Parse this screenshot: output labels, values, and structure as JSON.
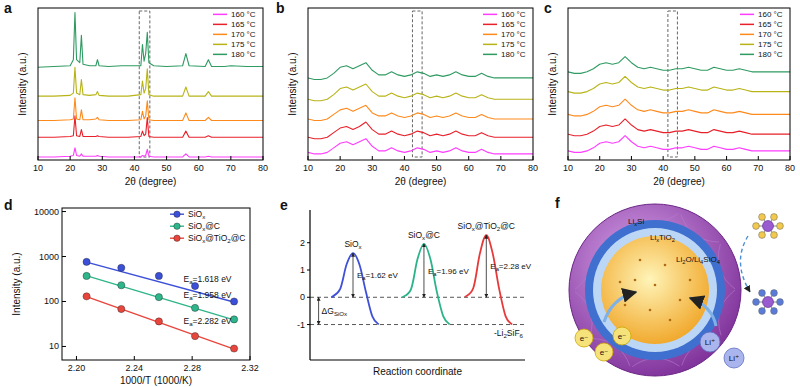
{
  "chart_data": [
    {
      "type": "line",
      "title": "a",
      "x_label": "2θ (degree)",
      "y_label": "Intensity (a.u.)",
      "x": [
        10,
        15,
        20,
        21,
        21.5,
        22,
        23,
        23.5,
        24,
        26,
        28,
        28.5,
        29,
        32,
        36,
        38,
        42,
        42.5,
        43,
        43.5,
        44,
        44.5,
        46,
        50,
        55,
        56,
        57,
        62,
        63,
        64,
        68,
        70,
        75,
        80
      ],
      "series": [
        {
          "name": "160 °C",
          "color": "#ff3cff",
          "values": [
            2,
            2,
            2.5,
            3,
            8,
            3,
            2.5,
            4,
            2.5,
            2.5,
            2.5,
            3,
            2.5,
            2,
            2,
            2,
            2,
            3,
            2.5,
            3,
            7,
            2.5,
            2,
            2,
            2,
            4,
            2,
            2,
            2.5,
            2,
            2,
            2,
            2,
            2
          ]
        },
        {
          "name": "165 °C",
          "color": "#e8202a",
          "values": [
            15,
            15,
            15.5,
            16,
            29,
            16,
            15.5,
            20,
            15.5,
            15.5,
            15.5,
            16,
            15.5,
            15,
            15,
            15,
            15.5,
            19,
            16,
            17,
            28,
            15.5,
            15,
            15,
            15,
            19,
            15,
            15,
            16,
            15,
            15,
            15,
            15,
            15
          ]
        },
        {
          "name": "170 °C",
          "color": "#ff8a1c",
          "values": [
            26,
            26,
            26.5,
            27,
            41,
            27,
            26.5,
            33,
            26.5,
            26.5,
            27,
            28,
            26.5,
            26,
            26,
            26,
            26.5,
            32,
            27,
            29,
            39,
            26.5,
            26,
            26,
            26,
            31,
            26,
            26,
            28,
            26,
            26,
            26,
            26,
            26
          ]
        },
        {
          "name": "175 °C",
          "color": "#b8b418",
          "values": [
            42,
            42,
            42.5,
            44,
            61,
            44,
            43,
            53,
            43,
            42.5,
            43,
            45,
            42.5,
            42,
            42,
            42,
            43,
            52,
            44,
            47,
            60,
            43,
            42,
            42,
            42,
            48,
            42,
            42,
            45,
            42,
            42,
            42,
            42,
            42
          ]
        },
        {
          "name": "180 °C",
          "color": "#2f9a62",
          "values": [
            61,
            61.5,
            62,
            66,
            97,
            66,
            64,
            82,
            63,
            62,
            62,
            66,
            62,
            61.5,
            62,
            62,
            62,
            76,
            65,
            70,
            84,
            64,
            62,
            61.5,
            62,
            70,
            62,
            61.5,
            66,
            61.5,
            61.5,
            62,
            61.5,
            61.5
          ]
        }
      ],
      "xlim": [
        10,
        80
      ],
      "xticks": [
        10,
        20,
        30,
        40,
        50,
        60,
        70,
        80
      ],
      "ylim": [
        0,
        100
      ],
      "tick_labels": "x",
      "legend": "upper right",
      "highlight_x": [
        41.5,
        44.8
      ]
    },
    {
      "type": "line",
      "title": "b",
      "x_label": "2θ (degree)",
      "y_label": "Intensity (a.u.)",
      "x": [
        10,
        12,
        14,
        16,
        18,
        20,
        22,
        24,
        26,
        28,
        30,
        32,
        34,
        36,
        38,
        40,
        42,
        44,
        46,
        48,
        50,
        52,
        54,
        56,
        58,
        60,
        62,
        64,
        66,
        68,
        70,
        72,
        74,
        76,
        78,
        80
      ],
      "series": [
        {
          "name": "160 °C",
          "color": "#ff3cff",
          "values": [
            5,
            4,
            4,
            5,
            8,
            11,
            12,
            10,
            12,
            14,
            9,
            6,
            6,
            8,
            6,
            5,
            6,
            8,
            7,
            5,
            6,
            5,
            6,
            8,
            6,
            5,
            5,
            7,
            5,
            4,
            4,
            4,
            4,
            4,
            4,
            4
          ]
        },
        {
          "name": "165 °C",
          "color": "#e8202a",
          "values": [
            15,
            14,
            14,
            15,
            18,
            21,
            22,
            20,
            22,
            25,
            20,
            17,
            17,
            19,
            17,
            16,
            17,
            19,
            18,
            16,
            17,
            16,
            17,
            19,
            17,
            16,
            16,
            18,
            16,
            15,
            15,
            15,
            15,
            15,
            15,
            15
          ]
        },
        {
          "name": "170 °C",
          "color": "#ff8a1c",
          "values": [
            27,
            26,
            26,
            27,
            30,
            33,
            34,
            32,
            34,
            36,
            31,
            29,
            29,
            31,
            29,
            28,
            29,
            31,
            30,
            28,
            29,
            28,
            29,
            31,
            29,
            28,
            28,
            30,
            28,
            27,
            27,
            27,
            27,
            27,
            27,
            27
          ]
        },
        {
          "name": "175 °C",
          "color": "#b8b418",
          "values": [
            40,
            39,
            39,
            40,
            43,
            47,
            48,
            46,
            48,
            50,
            45,
            42,
            42,
            44,
            42,
            41,
            42,
            44,
            43,
            41,
            42,
            41,
            42,
            44,
            42,
            41,
            41,
            43,
            41,
            40,
            40,
            40,
            40,
            40,
            40,
            40
          ]
        },
        {
          "name": "180 °C",
          "color": "#2f9a62",
          "values": [
            54,
            53,
            53,
            54,
            57,
            61,
            62,
            60,
            62,
            64,
            59,
            56,
            56,
            58,
            56,
            55,
            56,
            58,
            57,
            55,
            56,
            55,
            56,
            58,
            56,
            55,
            55,
            57,
            55,
            54,
            54,
            54,
            54,
            54,
            54,
            54
          ]
        }
      ],
      "xlim": [
        10,
        80
      ],
      "xticks": [
        10,
        20,
        30,
        40,
        50,
        60,
        70,
        80
      ],
      "ylim": [
        0,
        100
      ],
      "tick_labels": "x",
      "legend": "upper right",
      "highlight_x": [
        42.5,
        45.5
      ]
    },
    {
      "type": "line",
      "title": "c",
      "x_label": "2θ (degree)",
      "y_label": "Intensity (a.u.)",
      "x": [
        10,
        12,
        14,
        16,
        18,
        20,
        22,
        24,
        26,
        28,
        30,
        32,
        34,
        36,
        38,
        40,
        42,
        44,
        46,
        48,
        50,
        52,
        54,
        56,
        58,
        60,
        62,
        64,
        66,
        68,
        70,
        72,
        74,
        76,
        78,
        80
      ],
      "series": [
        {
          "name": "160 °C",
          "color": "#ff3cff",
          "values": [
            6,
            5,
            5,
            6,
            8,
            11,
            12,
            11,
            12,
            16,
            12,
            9,
            8,
            9,
            8,
            7,
            7,
            8,
            8,
            9,
            8,
            7,
            7,
            9,
            8,
            7,
            7,
            8,
            7,
            6,
            6,
            6,
            6,
            6,
            6,
            6
          ]
        },
        {
          "name": "165 °C",
          "color": "#e8202a",
          "values": [
            17,
            16,
            16,
            17,
            19,
            22,
            23,
            22,
            23,
            27,
            23,
            20,
            19,
            20,
            19,
            18,
            18,
            19,
            19,
            20,
            19,
            18,
            18,
            20,
            19,
            18,
            18,
            19,
            18,
            17,
            17,
            17,
            17,
            17,
            17,
            17
          ]
        },
        {
          "name": "170 °C",
          "color": "#ff8a1c",
          "values": [
            30,
            29,
            29,
            30,
            32,
            35,
            36,
            35,
            36,
            40,
            36,
            33,
            32,
            33,
            32,
            31,
            31,
            32,
            32,
            33,
            32,
            31,
            31,
            33,
            32,
            31,
            31,
            32,
            31,
            30,
            30,
            30,
            30,
            30,
            30,
            30
          ]
        },
        {
          "name": "175 °C",
          "color": "#b8b418",
          "values": [
            45,
            44,
            44,
            45,
            47,
            50,
            51,
            50,
            51,
            55,
            51,
            48,
            47,
            48,
            47,
            46,
            46,
            47,
            47,
            48,
            47,
            46,
            46,
            48,
            47,
            46,
            46,
            47,
            46,
            45,
            45,
            45,
            45,
            45,
            45,
            45
          ]
        },
        {
          "name": "180 °C",
          "color": "#2f9a62",
          "values": [
            58,
            57,
            57,
            58,
            60,
            63,
            64,
            63,
            64,
            68,
            64,
            61,
            60,
            61,
            60,
            59,
            59,
            60,
            60,
            61,
            60,
            59,
            59,
            61,
            60,
            59,
            59,
            60,
            59,
            58,
            58,
            58,
            58,
            58,
            58,
            58
          ]
        }
      ],
      "xlim": [
        10,
        80
      ],
      "xticks": [
        10,
        20,
        30,
        40,
        50,
        60,
        70,
        80
      ],
      "ylim": [
        0,
        100
      ],
      "tick_labels": "x",
      "legend": "upper right",
      "highlight_x": [
        41.5,
        44.5
      ]
    },
    {
      "type": "scatter",
      "title": "d",
      "x_label": "1000/T (1000/K)",
      "y_label": "Intensity (a.u.)",
      "log": "y",
      "x": [
        2.207,
        2.231,
        2.257,
        2.282,
        2.309
      ],
      "series": [
        {
          "name": "SiOx",
          "color": "#3b4fd8",
          "marker": "circle",
          "values": [
            760,
            560,
            370,
            220,
            100
          ],
          "fit_x": [
            2.205,
            2.31
          ],
          "fit_values": [
            780,
            95
          ],
          "annotation": "Ea=1.618 eV"
        },
        {
          "name": "SiOx@C",
          "color": "#2fb58a",
          "marker": "circle",
          "values": [
            370,
            230,
            125,
            72,
            40
          ],
          "fit_x": [
            2.205,
            2.31
          ],
          "fit_values": [
            390,
            38
          ],
          "annotation": "Ea=1.958 eV"
        },
        {
          "name": "SiOx@TiO2@C",
          "color": "#e8453c",
          "marker": "circle",
          "values": [
            130,
            68,
            36,
            17,
            9
          ],
          "fit_x": [
            2.205,
            2.31
          ],
          "fit_values": [
            135,
            8.5
          ],
          "annotation": "Ea=2.282 eV"
        }
      ],
      "xlim": [
        2.19,
        2.32
      ],
      "xticks": [
        {
          "value": 2.2,
          "label": "2.20"
        },
        {
          "value": 2.24,
          "label": "2.24"
        },
        {
          "value": 2.28,
          "label": "2.28"
        },
        {
          "value": 2.32,
          "label": "2.32"
        }
      ],
      "ylim": [
        5,
        12000
      ],
      "yticks": [
        10,
        100,
        1000,
        10000
      ],
      "legend": "upper right"
    },
    {
      "type": "line",
      "title": "e",
      "x_label": "Reaction coordinate",
      "series": [
        {
          "name": "SiOx",
          "color": "#3f51d8",
          "x": [
            1.0,
            1.4,
            1.7,
            2.0,
            2.3,
            2.6,
            2.9,
            3.2
          ],
          "values": [
            0,
            0.3,
            1.2,
            1.62,
            1.2,
            0.2,
            -0.7,
            -1.0
          ],
          "barrier": 1.62,
          "annotation": "Ea=1.62 eV"
        },
        {
          "name": "SiOx@C",
          "color": "#2bb38a",
          "x": [
            4.3,
            4.7,
            5.0,
            5.3,
            5.6,
            5.9,
            6.2,
            6.5
          ],
          "values": [
            0,
            0.3,
            1.4,
            1.96,
            1.4,
            0.2,
            -0.7,
            -1.0
          ],
          "barrier": 1.96,
          "annotation": "Ea=1.96 eV"
        },
        {
          "name": "SiOx@TiO2@C",
          "color": "#e63a3a",
          "x": [
            7.2,
            7.6,
            7.9,
            8.2,
            8.5,
            8.8,
            9.1,
            9.4
          ],
          "values": [
            0,
            0.35,
            1.6,
            2.28,
            1.6,
            0.3,
            -0.7,
            -1.0
          ],
          "barrier": 2.28,
          "annotation": "Ea=2.28 eV"
        }
      ],
      "xlim": [
        0,
        10
      ],
      "ylim": [
        -2.3,
        3.2
      ],
      "yticks": [
        -1,
        0,
        1,
        2
      ],
      "tick_labels": "y",
      "reference_lines": [
        {
          "value": 0
        },
        {
          "value": -1,
          "label": "-Li2SiF6"
        }
      ],
      "delta_g": {
        "label": "ΔGSiOx",
        "x": 0.4,
        "from": 0,
        "to": -1
      }
    }
  ],
  "diagram": {
    "title": "f",
    "layers": [
      "LixSi",
      "LixTiO2",
      "Li2O/Li4SiO4"
    ],
    "electrons": [
      "e⁻",
      "e⁻",
      "e⁻"
    ],
    "ions": [
      "Li⁺",
      "Li⁺"
    ]
  }
}
